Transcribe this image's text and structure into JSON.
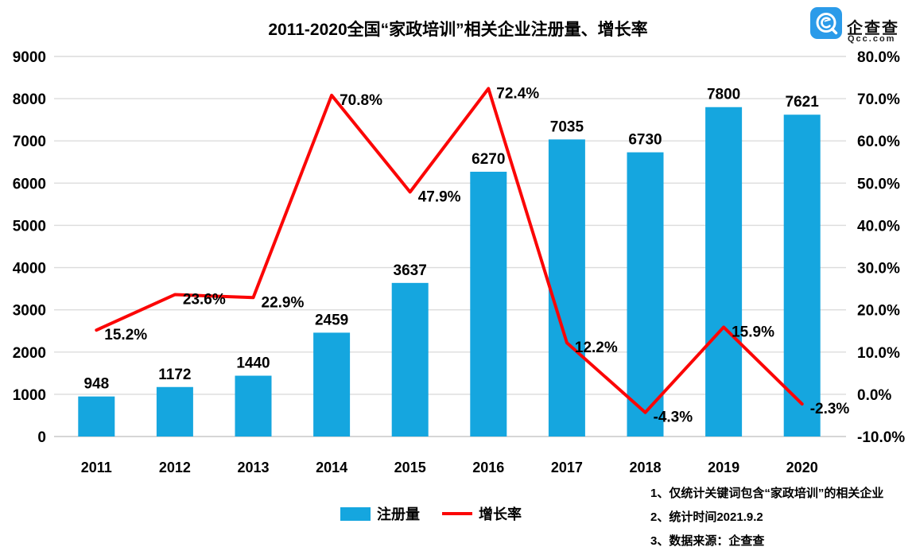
{
  "title": "2011-2020全国“家政培训”相关企业注册量、增长率",
  "logo": {
    "brand_name": "企查查",
    "domain": "Qcc.com",
    "brand_blue": "#2B9BE9"
  },
  "legend": [
    {
      "label": "注册量",
      "type": "bar",
      "color": "#15A6DF"
    },
    {
      "label": "增长率",
      "type": "line",
      "color": "#FB0606"
    }
  ],
  "footnotes": [
    "1、仅统计关键词包含“家政培训”的相关企业",
    "2、统计时间2021.9.2",
    "3、数据来源：企查查"
  ],
  "chart_data": {
    "type": "bar+line combo",
    "title": "2011-2020全国“家政培训”相关企业注册量、增长率",
    "categories": [
      "2011",
      "2012",
      "2013",
      "2014",
      "2015",
      "2016",
      "2017",
      "2018",
      "2019",
      "2020"
    ],
    "series": [
      {
        "name": "注册量",
        "type": "bar",
        "axis": "left",
        "color": "#15A6DF",
        "values": [
          948,
          1172,
          1440,
          2459,
          3637,
          6270,
          7035,
          6730,
          7800,
          7621
        ],
        "labels": [
          "948",
          "1172",
          "1440",
          "2459",
          "3637",
          "6270",
          "7035",
          "6730",
          "7800",
          "7621"
        ]
      },
      {
        "name": "增长率",
        "type": "line",
        "axis": "right",
        "color": "#FB0606",
        "values": [
          15.2,
          23.6,
          22.9,
          70.8,
          47.9,
          72.4,
          12.2,
          -4.3,
          15.9,
          -2.3
        ],
        "labels": [
          "15.2%",
          "23.6%",
          "22.9%",
          "70.8%",
          "47.9%",
          "72.4%",
          "12.2%",
          "-4.3%",
          "15.9%",
          "-2.3%"
        ]
      }
    ],
    "left_axis": {
      "min": 0,
      "max": 9000,
      "step": 1000,
      "tick_labels": [
        "0",
        "1000",
        "2000",
        "3000",
        "4000",
        "5000",
        "6000",
        "7000",
        "8000",
        "9000"
      ]
    },
    "right_axis": {
      "min": -10,
      "max": 80,
      "step": 10,
      "tick_labels": [
        "-10.0%",
        "0.0%",
        "10.0%",
        "20.0%",
        "30.0%",
        "40.0%",
        "50.0%",
        "60.0%",
        "70.0%",
        "80.0%"
      ]
    },
    "grid": "horizontal",
    "grid_color": "#DCDCDC",
    "legend_position": "bottom-center"
  }
}
